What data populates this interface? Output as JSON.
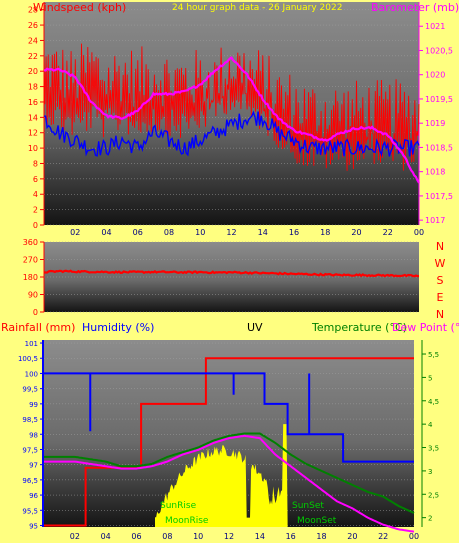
{
  "header": {
    "left_label": "Windspeed (kph)",
    "right_label": "Barometer (mb)",
    "center_label": "24 hour graph data - 26 January 2022"
  },
  "colors": {
    "background": "#ffff80",
    "wind": "#ff0000",
    "gust": "#ff0000",
    "avg_wind": "#0000ff",
    "barometer": "#ff00ff",
    "direction": "#ff0000",
    "rainfall": "#ff0000",
    "humidity": "#0000ff",
    "temperature": "#008000",
    "dewpoint": "#ff00ff",
    "uv": "#000000",
    "solar": "#ffff00"
  },
  "chart_data": [
    {
      "type": "line",
      "title": "",
      "xlabel": "",
      "ylabel": "Windspeed (kph)",
      "y2label": "Barometer (mb)",
      "x_ticks": [
        "02",
        "04",
        "06",
        "08",
        "10",
        "12",
        "14",
        "16",
        "18",
        "20",
        "22",
        "00"
      ],
      "y_ticks": [
        "0",
        "2",
        "4",
        "6",
        "8",
        "10",
        "12",
        "14",
        "16",
        "18",
        "20",
        "22",
        "24",
        "26",
        "28"
      ],
      "y2_ticks": [
        "1017",
        "1017,5",
        "1018",
        "1018,5",
        "1019",
        "1019,5",
        "1020",
        "1020,5",
        "1021"
      ],
      "ylim": [
        0,
        29
      ],
      "y2lim": [
        1016.9,
        1021.5
      ],
      "x_hours": [
        0,
        1,
        2,
        3,
        4,
        5,
        6,
        7,
        8,
        9,
        10,
        11,
        12,
        13,
        14,
        15,
        16,
        17,
        18,
        19,
        20,
        21,
        22,
        23,
        24
      ],
      "series": [
        {
          "values": [
            21,
            20,
            19,
            21,
            19,
            20,
            19,
            20,
            19,
            19,
            19,
            19,
            21,
            20,
            19,
            17,
            16,
            15,
            15,
            15,
            15,
            15,
            15,
            15,
            15
          ],
          "axis": "left",
          "style": "max-band"
        },
        {
          "values": [
            17,
            16,
            15,
            16,
            15,
            16,
            15,
            16,
            15,
            15,
            16,
            17,
            19,
            17,
            16,
            14,
            12,
            11,
            11,
            11,
            11,
            12,
            11,
            11,
            12
          ],
          "axis": "left",
          "style": "gust"
        },
        {
          "values": [
            14,
            12,
            11,
            10,
            10,
            11,
            10,
            12,
            11,
            10,
            11,
            12,
            13,
            14,
            14,
            12,
            11,
            10,
            10,
            10,
            10,
            10,
            10,
            10,
            10
          ],
          "axis": "left",
          "style": "avg"
        },
        {
          "values": [
            1020.1,
            1020.1,
            1019.95,
            1019.45,
            1019.15,
            1019.1,
            1019.25,
            1019.6,
            1019.6,
            1019.65,
            1019.8,
            1020.1,
            1020.35,
            1020.0,
            1019.5,
            1019.1,
            1018.85,
            1018.75,
            1018.65,
            1018.8,
            1018.9,
            1018.9,
            1018.75,
            1018.35,
            1017.75
          ],
          "axis": "right",
          "style": "baro"
        }
      ]
    },
    {
      "type": "line",
      "title": "",
      "y_ticks": [
        "0",
        "90",
        "180",
        "270",
        "360"
      ],
      "ylim": [
        0,
        360
      ],
      "right_letters": [
        "N",
        "W",
        "S",
        "E",
        "N"
      ],
      "series": [
        {
          "values": [
            205,
            210,
            208,
            207,
            206,
            205,
            205,
            206,
            205,
            204,
            205,
            203,
            204,
            202,
            200,
            198,
            196,
            194,
            192,
            190,
            190,
            189,
            188,
            187,
            185
          ]
        }
      ]
    },
    {
      "type": "line",
      "title": "",
      "labels": {
        "rainfall": "Rainfall (mm)",
        "humidity": "Humidity (%)",
        "uv": "UV",
        "temperature": "Temperature (°C)",
        "dewpoint": "Dew Point (°C)"
      },
      "y_ticks": [
        "95",
        "95,5",
        "96",
        "96,5",
        "97",
        "97,5",
        "98",
        "98,5",
        "99",
        "99,5",
        "100",
        "100,5",
        "101"
      ],
      "y2_ticks": [
        "2",
        "2,5",
        "3",
        "3,5",
        "4",
        "4,5",
        "5",
        "5,5"
      ],
      "ylim": [
        94.95,
        101.1
      ],
      "y2lim": [
        1.8,
        5.8
      ],
      "sun_labels": {
        "sunrise": "SunRise",
        "moonrise": "MoonRise",
        "sunset": "SunSet",
        "moonset": "MoonSet"
      },
      "humidity_steps": [
        [
          0,
          100
        ],
        [
          14.3,
          100
        ],
        [
          14.3,
          99
        ],
        [
          15.8,
          99
        ],
        [
          15.8,
          98
        ],
        [
          17.5,
          98
        ],
        [
          17.5,
          98
        ],
        [
          19.4,
          98
        ],
        [
          19.4,
          97.1
        ],
        [
          24,
          97.1
        ]
      ],
      "rain_steps": [
        [
          0,
          95
        ],
        [
          2.7,
          95
        ],
        [
          2.7,
          96.9
        ],
        [
          6.3,
          96.9
        ],
        [
          6.3,
          99
        ],
        [
          10.5,
          99
        ],
        [
          10.5,
          100.5
        ],
        [
          24,
          100.5
        ]
      ],
      "temp_values": [
        3.3,
        3.3,
        3.3,
        3.25,
        3.2,
        3.1,
        3.1,
        3.15,
        3.3,
        3.4,
        3.5,
        3.65,
        3.75,
        3.8,
        3.8,
        3.6,
        3.35,
        3.15,
        3.0,
        2.85,
        2.7,
        2.55,
        2.45,
        2.25,
        2.1
      ],
      "dew_values": [
        3.2,
        3.2,
        3.2,
        3.15,
        3.1,
        3.05,
        3.05,
        3.1,
        3.2,
        3.35,
        3.45,
        3.6,
        3.7,
        3.75,
        3.7,
        3.35,
        3.1,
        2.85,
        2.6,
        2.35,
        2.2,
        2.0,
        1.85,
        1.75,
        1.7
      ],
      "uv_line": 3.9
    }
  ]
}
